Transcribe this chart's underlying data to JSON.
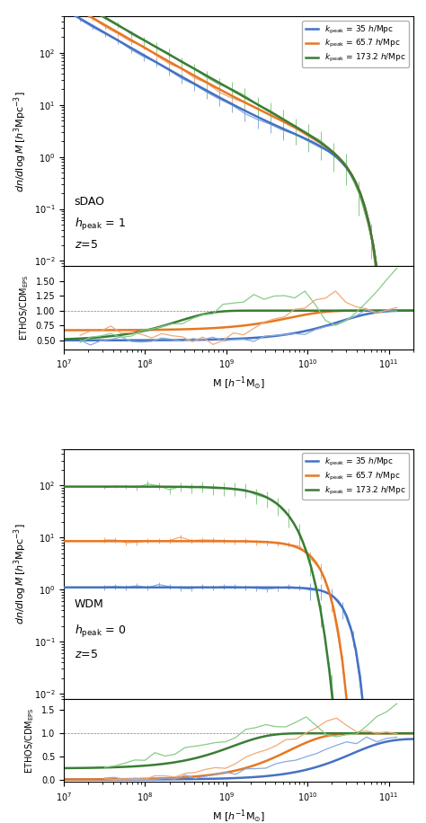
{
  "colors": {
    "blue": "#4472C4",
    "orange": "#E87722",
    "green": "#3A7D35",
    "blue_light": "#88AADD",
    "orange_light": "#F0AA77",
    "green_light": "#88CC88"
  },
  "legend_labels": [
    "k_peak = 35 h/Mpc",
    "k_peak = 65.7 h/Mpc",
    "k_peak = 173.2 h/Mpc"
  ],
  "panel1_label_line1": "sDAO",
  "panel1_label_line2": "$h_{\\rm peak}$ = 1",
  "panel1_label_line3": "$z$=5",
  "panel2_label_line1": "WDM",
  "panel2_label_line2": "$h_{\\rm peak}$ = 0",
  "panel2_label_line3": "$z$=5",
  "ylabel_main": "$dn/d\\log M\\,[h^3{\\rm Mpc}^{-3}]$",
  "ylabel_ratio": "ETHOS/CDM$_{\\rm EPS}$",
  "xlabel": "M [$h^{-1}{\\rm M}_{\\odot}$]",
  "xlim": [
    10000000.0,
    200000000000.0
  ],
  "ylim_main": [
    0.008,
    500
  ],
  "ylim_ratio1": [
    0.35,
    1.75
  ],
  "ylim_ratio2": [
    -0.05,
    1.75
  ]
}
